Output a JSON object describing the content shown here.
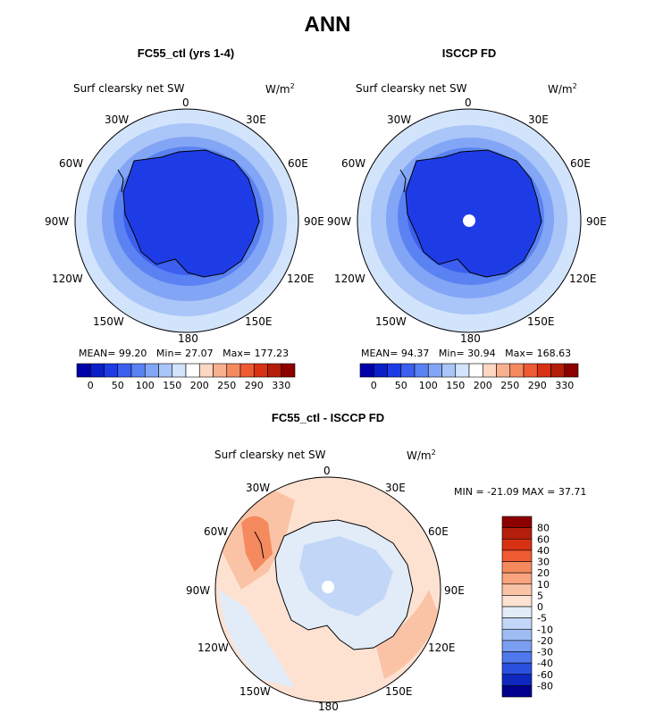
{
  "page_title": "ANN",
  "chart_data": [
    {
      "type": "heatmap",
      "projection": "south-polar-stereographic",
      "title": "FC55_ctl (yrs 1-4)",
      "variable": "Surf clearsky net SW",
      "units_base": "W/m",
      "units_exp": "2",
      "stats": {
        "mean_label": "MEAN=",
        "mean": "99.20",
        "min_label": "Min=",
        "min": "27.07",
        "max_label": "Max=",
        "max": "177.23"
      },
      "lon_labels": [
        "0",
        "30E",
        "60E",
        "90E",
        "120E",
        "150E",
        "180",
        "150W",
        "120W",
        "90W",
        "60W",
        "30W"
      ],
      "colorbar_ticks": [
        "0",
        "50",
        "100",
        "150",
        "200",
        "250",
        "290",
        "330"
      ],
      "colorbar_colors": [
        "#0000A8",
        "#0A1FC8",
        "#1E3CE6",
        "#3C5FF0",
        "#5A82F2",
        "#82A5F5",
        "#AAC5F8",
        "#D2E4FB",
        "#FFFFFF",
        "#FCD7C3",
        "#F9B08F",
        "#F58A5F",
        "#EE5A32",
        "#D73214",
        "#B41E0A",
        "#8C0000"
      ],
      "has_center_pole_dot": false
    },
    {
      "type": "heatmap",
      "projection": "south-polar-stereographic",
      "title": "ISCCP FD",
      "variable": "Surf clearsky net SW",
      "units_base": "W/m",
      "units_exp": "2",
      "stats": {
        "mean_label": "MEAN=",
        "mean": "94.37",
        "min_label": "Min=",
        "min": "30.94",
        "max_label": "Max=",
        "max": "168.63"
      },
      "lon_labels": [
        "0",
        "30E",
        "60E",
        "90E",
        "120E",
        "150E",
        "180",
        "150W",
        "120W",
        "90W",
        "60W",
        "30W"
      ],
      "colorbar_ticks": [
        "0",
        "50",
        "100",
        "150",
        "200",
        "250",
        "290",
        "330"
      ],
      "colorbar_colors": [
        "#0000A8",
        "#0A1FC8",
        "#1E3CE6",
        "#3C5FF0",
        "#5A82F2",
        "#82A5F5",
        "#AAC5F8",
        "#D2E4FB",
        "#FFFFFF",
        "#FCD7C3",
        "#F9B08F",
        "#F58A5F",
        "#EE5A32",
        "#D73214",
        "#B41E0A",
        "#8C0000"
      ],
      "has_center_pole_dot": true
    },
    {
      "type": "heatmap",
      "projection": "south-polar-stereographic",
      "title": "FC55_ctl - ISCCP FD",
      "variable": "Surf clearsky net SW",
      "units_base": "W/m",
      "units_exp": "2",
      "stats_text": "MIN = -21.09 MAX =  37.71",
      "lon_labels": [
        "0",
        "30E",
        "60E",
        "90E",
        "120E",
        "150E",
        "180",
        "150W",
        "120W",
        "90W",
        "60W",
        "30W"
      ],
      "colorbar_ticks": [
        "80",
        "60",
        "40",
        "30",
        "20",
        "10",
        "5",
        "0",
        "-5",
        "-10",
        "-20",
        "-30",
        "-40",
        "-60",
        "-80"
      ],
      "colorbar_colors": [
        "#8C0000",
        "#B41E0A",
        "#D73214",
        "#EE5A32",
        "#F58A5F",
        "#F9A47F",
        "#FBC3A6",
        "#FDE2D2",
        "#E2ECF8",
        "#C2D6F7",
        "#9FBDF3",
        "#7A9EF0",
        "#4F78EC",
        "#2A50E0",
        "#1028C0",
        "#00008C"
      ],
      "has_center_pole_dot": true
    }
  ]
}
